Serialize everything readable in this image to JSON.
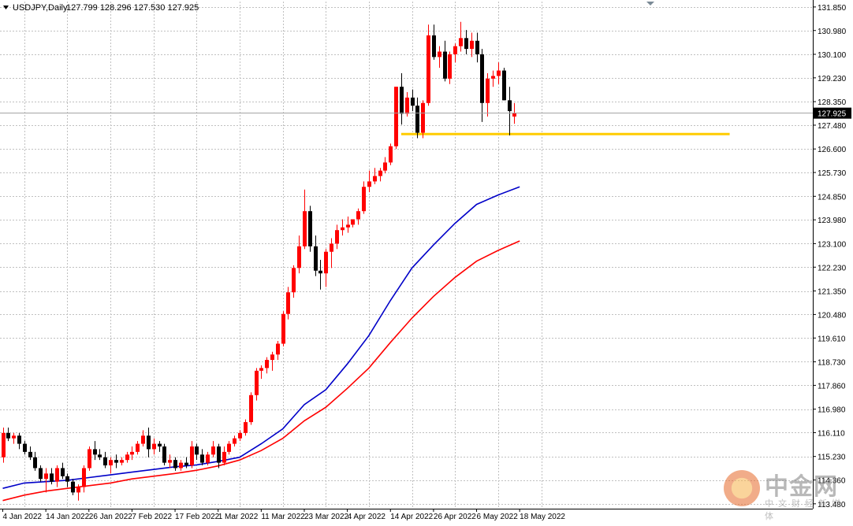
{
  "header": {
    "symbol": "USDJPY,Daily",
    "ohlc": "127.799 128.296 127.530 127.925"
  },
  "current_price": "127.925",
  "watermark": {
    "main": "中金网",
    "sub": "中文财经新媒体"
  },
  "colors": {
    "bull": "#ff0000",
    "bear": "#000000",
    "ma_fast": "#0000c8",
    "ma_slow": "#ff0000",
    "support": "#ffcc00",
    "grid": "#c0c0c0",
    "axis": "#000000"
  },
  "chart_data": {
    "type": "candlestick",
    "symbol": "USDJPY",
    "timeframe": "Daily",
    "ylim": [
      113.3,
      132.05
    ],
    "grid": true,
    "y_ticks": [
      "131.850",
      "130.980",
      "130.100",
      "129.230",
      "128.350",
      "127.480",
      "126.600",
      "125.730",
      "124.850",
      "123.980",
      "123.100",
      "122.230",
      "121.350",
      "120.480",
      "119.610",
      "118.730",
      "117.860",
      "116.980",
      "116.110",
      "115.230",
      "114.360",
      "113.480"
    ],
    "x_ticks": [
      {
        "label": "4 Jan 2022",
        "index": 0
      },
      {
        "label": "14 Jan 2022",
        "index": 8
      },
      {
        "label": "26 Jan 2022",
        "index": 16
      },
      {
        "label": "7 Feb 2022",
        "index": 24
      },
      {
        "label": "17 Feb 2022",
        "index": 32
      },
      {
        "label": "1 Mar 2022",
        "index": 40
      },
      {
        "label": "11 Mar 2022",
        "index": 48
      },
      {
        "label": "23 Mar 2022",
        "index": 56
      },
      {
        "label": "4 Apr 2022",
        "index": 64
      },
      {
        "label": "14 Apr 2022",
        "index": 72
      },
      {
        "label": "26 Apr 2022",
        "index": 80
      },
      {
        "label": "6 May 2022",
        "index": 88
      },
      {
        "label": "18 May 2022",
        "index": 96
      }
    ],
    "candles": [
      [
        115.2,
        116.3,
        115.0,
        116.1
      ],
      [
        116.1,
        116.3,
        115.8,
        115.9
      ],
      [
        115.9,
        116.1,
        115.7,
        116.0
      ],
      [
        116.0,
        116.1,
        115.5,
        115.7
      ],
      [
        115.7,
        115.8,
        115.3,
        115.4
      ],
      [
        115.4,
        115.6,
        115.1,
        115.2
      ],
      [
        115.2,
        115.4,
        114.7,
        114.8
      ],
      [
        114.8,
        114.9,
        114.3,
        114.4
      ],
      [
        114.4,
        114.8,
        113.9,
        114.6
      ],
      [
        114.6,
        114.8,
        114.2,
        114.3
      ],
      [
        114.3,
        114.9,
        114.1,
        114.8
      ],
      [
        114.8,
        115.0,
        114.4,
        114.5
      ],
      [
        114.5,
        114.6,
        114.1,
        114.3
      ],
      [
        114.3,
        114.4,
        113.8,
        113.9
      ],
      [
        113.9,
        114.2,
        113.6,
        114.1
      ],
      [
        114.1,
        114.9,
        113.9,
        114.8
      ],
      [
        114.8,
        115.6,
        114.7,
        115.5
      ],
      [
        115.5,
        115.8,
        115.1,
        115.3
      ],
      [
        115.3,
        115.5,
        115.1,
        115.2
      ],
      [
        115.2,
        115.4,
        114.8,
        114.9
      ],
      [
        114.9,
        115.2,
        114.6,
        115.1
      ],
      [
        115.1,
        115.3,
        114.8,
        115.0
      ],
      [
        115.0,
        115.2,
        114.9,
        115.1
      ],
      [
        115.1,
        115.4,
        115.0,
        115.3
      ],
      [
        115.3,
        115.6,
        115.1,
        115.4
      ],
      [
        115.4,
        115.8,
        115.3,
        115.7
      ],
      [
        115.7,
        116.2,
        115.6,
        116.0
      ],
      [
        116.0,
        116.3,
        115.2,
        115.5
      ],
      [
        115.5,
        115.9,
        115.3,
        115.7
      ],
      [
        115.7,
        115.8,
        115.4,
        115.6
      ],
      [
        115.6,
        115.7,
        114.9,
        115.0
      ],
      [
        115.0,
        115.3,
        114.8,
        115.1
      ],
      [
        115.1,
        115.2,
        114.7,
        114.8
      ],
      [
        114.8,
        115.1,
        114.7,
        115.0
      ],
      [
        115.0,
        115.2,
        114.8,
        114.9
      ],
      [
        114.9,
        115.8,
        114.8,
        115.6
      ],
      [
        115.6,
        115.7,
        115.1,
        115.3
      ],
      [
        115.3,
        115.5,
        114.9,
        115.0
      ],
      [
        115.0,
        115.4,
        114.9,
        115.3
      ],
      [
        115.3,
        115.8,
        115.2,
        115.6
      ],
      [
        115.6,
        115.7,
        114.8,
        115.0
      ],
      [
        115.0,
        115.6,
        114.9,
        115.4
      ],
      [
        115.4,
        115.8,
        115.3,
        115.7
      ],
      [
        115.7,
        116.0,
        115.6,
        115.9
      ],
      [
        115.9,
        116.2,
        115.8,
        116.1
      ],
      [
        116.1,
        116.6,
        116.0,
        116.5
      ],
      [
        116.5,
        117.6,
        116.4,
        117.5
      ],
      [
        117.5,
        118.5,
        117.3,
        118.4
      ],
      [
        118.4,
        118.6,
        118.1,
        118.5
      ],
      [
        118.5,
        118.9,
        118.3,
        118.8
      ],
      [
        118.8,
        119.1,
        118.4,
        119.0
      ],
      [
        119.0,
        119.5,
        118.8,
        119.4
      ],
      [
        119.4,
        120.6,
        119.3,
        120.5
      ],
      [
        120.5,
        121.5,
        120.3,
        121.3
      ],
      [
        121.3,
        122.3,
        121.1,
        122.2
      ],
      [
        122.2,
        123.4,
        122.0,
        123.0
      ],
      [
        123.0,
        125.1,
        122.9,
        124.3
      ],
      [
        124.3,
        124.5,
        122.8,
        123.0
      ],
      [
        123.0,
        123.4,
        121.9,
        122.1
      ],
      [
        122.1,
        122.5,
        121.4,
        122.0
      ],
      [
        122.0,
        122.9,
        121.5,
        122.8
      ],
      [
        122.8,
        123.3,
        122.2,
        123.1
      ],
      [
        123.1,
        123.8,
        122.9,
        123.6
      ],
      [
        123.6,
        124.0,
        123.4,
        123.7
      ],
      [
        123.7,
        124.1,
        123.5,
        123.8
      ],
      [
        123.8,
        124.0,
        123.7,
        124.0
      ],
      [
        124.0,
        124.4,
        123.8,
        124.3
      ],
      [
        124.3,
        125.4,
        124.2,
        125.2
      ],
      [
        125.2,
        125.8,
        125.0,
        125.4
      ],
      [
        125.4,
        125.9,
        125.3,
        125.6
      ],
      [
        125.6,
        125.9,
        125.4,
        125.8
      ],
      [
        125.8,
        126.3,
        125.7,
        126.1
      ],
      [
        126.1,
        126.8,
        126.0,
        126.7
      ],
      [
        126.7,
        128.9,
        126.6,
        128.9
      ],
      [
        128.9,
        129.4,
        127.5,
        127.9
      ],
      [
        127.9,
        128.7,
        127.8,
        128.5
      ],
      [
        128.5,
        128.8,
        128.0,
        128.2
      ],
      [
        128.2,
        128.5,
        127.0,
        127.2
      ],
      [
        127.2,
        128.4,
        127.0,
        128.3
      ],
      [
        128.3,
        131.2,
        128.2,
        130.8
      ],
      [
        130.8,
        131.2,
        129.9,
        130.0
      ],
      [
        130.0,
        130.4,
        129.6,
        130.2
      ],
      [
        130.2,
        130.6,
        129.1,
        129.2
      ],
      [
        129.2,
        130.2,
        129.0,
        130.1
      ],
      [
        130.1,
        130.5,
        129.8,
        130.4
      ],
      [
        130.4,
        131.3,
        130.2,
        130.7
      ],
      [
        130.7,
        131.0,
        130.1,
        130.3
      ],
      [
        130.3,
        130.9,
        130.0,
        130.6
      ],
      [
        130.6,
        130.9,
        129.8,
        130.1
      ],
      [
        130.1,
        130.3,
        127.6,
        128.3
      ],
      [
        128.3,
        129.4,
        127.8,
        129.2
      ],
      [
        129.2,
        129.5,
        128.9,
        129.3
      ],
      [
        129.3,
        129.8,
        129.0,
        129.5
      ],
      [
        129.5,
        129.6,
        128.4,
        128.4
      ],
      [
        128.4,
        128.9,
        127.1,
        128.0
      ],
      [
        127.799,
        128.296,
        127.53,
        127.925
      ]
    ],
    "support_level": 127.15,
    "moving_averages": [
      {
        "name": "",
        "color": "#0000c8",
        "values": [
          [
            0,
            114.05
          ],
          [
            4,
            114.25
          ],
          [
            8,
            114.3
          ],
          [
            12,
            114.35
          ],
          [
            16,
            114.45
          ],
          [
            20,
            114.55
          ],
          [
            24,
            114.65
          ],
          [
            28,
            114.75
          ],
          [
            32,
            114.85
          ],
          [
            36,
            114.92
          ],
          [
            40,
            115.05
          ],
          [
            44,
            115.2
          ],
          [
            48,
            115.7
          ],
          [
            52,
            116.25
          ],
          [
            56,
            117.15
          ],
          [
            60,
            117.7
          ],
          [
            64,
            118.65
          ],
          [
            68,
            119.7
          ],
          [
            72,
            121.0
          ],
          [
            76,
            122.2
          ],
          [
            80,
            123.05
          ],
          [
            84,
            123.85
          ],
          [
            88,
            124.55
          ],
          [
            92,
            124.9
          ],
          [
            96,
            125.2
          ]
        ]
      },
      {
        "name": "",
        "color": "#ff0000",
        "values": [
          [
            0,
            113.6
          ],
          [
            4,
            113.8
          ],
          [
            8,
            113.95
          ],
          [
            12,
            114.05
          ],
          [
            16,
            114.15
          ],
          [
            20,
            114.25
          ],
          [
            24,
            114.4
          ],
          [
            28,
            114.5
          ],
          [
            32,
            114.6
          ],
          [
            36,
            114.72
          ],
          [
            40,
            114.88
          ],
          [
            44,
            115.1
          ],
          [
            48,
            115.45
          ],
          [
            52,
            115.9
          ],
          [
            56,
            116.55
          ],
          [
            60,
            117.05
          ],
          [
            64,
            117.75
          ],
          [
            68,
            118.5
          ],
          [
            72,
            119.45
          ],
          [
            76,
            120.35
          ],
          [
            80,
            121.15
          ],
          [
            84,
            121.85
          ],
          [
            88,
            122.45
          ],
          [
            92,
            122.85
          ],
          [
            96,
            123.2
          ]
        ]
      }
    ]
  }
}
